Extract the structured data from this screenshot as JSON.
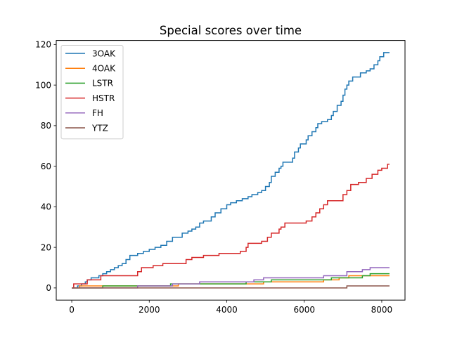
{
  "chart_data": {
    "type": "line",
    "title": "Special scores over time",
    "xlabel": "",
    "ylabel": "",
    "xlim": [
      -400,
      8600
    ],
    "ylim": [
      -6,
      122
    ],
    "xticks": [
      0,
      2000,
      4000,
      6000,
      8000
    ],
    "yticks": [
      0,
      20,
      40,
      60,
      80,
      100,
      120
    ],
    "xtick_labels": [
      "0",
      "2000",
      "4000",
      "6000",
      "8000"
    ],
    "ytick_labels": [
      "0",
      "20",
      "40",
      "60",
      "80",
      "100",
      "120"
    ],
    "grid": false,
    "legend_position": "upper left",
    "step": true,
    "series": [
      {
        "name": "3OAK",
        "color": "#1f77b4",
        "points": [
          [
            0,
            0
          ],
          [
            150,
            1
          ],
          [
            250,
            2
          ],
          [
            350,
            3
          ],
          [
            400,
            4
          ],
          [
            500,
            5
          ],
          [
            700,
            6
          ],
          [
            800,
            7
          ],
          [
            900,
            8
          ],
          [
            1000,
            9
          ],
          [
            1100,
            10
          ],
          [
            1200,
            11
          ],
          [
            1300,
            12
          ],
          [
            1400,
            14
          ],
          [
            1500,
            16
          ],
          [
            1700,
            17
          ],
          [
            1850,
            18
          ],
          [
            2000,
            19
          ],
          [
            2150,
            20
          ],
          [
            2300,
            21
          ],
          [
            2450,
            23
          ],
          [
            2600,
            25
          ],
          [
            2850,
            27
          ],
          [
            3000,
            28
          ],
          [
            3100,
            29
          ],
          [
            3200,
            30
          ],
          [
            3300,
            32
          ],
          [
            3400,
            33
          ],
          [
            3600,
            35
          ],
          [
            3700,
            37
          ],
          [
            3850,
            39
          ],
          [
            4000,
            41
          ],
          [
            4100,
            42
          ],
          [
            4250,
            43
          ],
          [
            4400,
            44
          ],
          [
            4550,
            45
          ],
          [
            4650,
            46
          ],
          [
            4800,
            47
          ],
          [
            4900,
            48
          ],
          [
            5000,
            50
          ],
          [
            5100,
            52
          ],
          [
            5150,
            55
          ],
          [
            5250,
            57
          ],
          [
            5350,
            59
          ],
          [
            5400,
            60
          ],
          [
            5450,
            62
          ],
          [
            5700,
            64
          ],
          [
            5750,
            67
          ],
          [
            5850,
            69
          ],
          [
            5900,
            71
          ],
          [
            6050,
            73
          ],
          [
            6100,
            75
          ],
          [
            6200,
            77
          ],
          [
            6300,
            79
          ],
          [
            6350,
            81
          ],
          [
            6450,
            82
          ],
          [
            6600,
            83
          ],
          [
            6700,
            85
          ],
          [
            6750,
            87
          ],
          [
            6850,
            90
          ],
          [
            6950,
            92
          ],
          [
            7000,
            95
          ],
          [
            7050,
            98
          ],
          [
            7100,
            100
          ],
          [
            7150,
            102
          ],
          [
            7250,
            104
          ],
          [
            7450,
            106
          ],
          [
            7600,
            107
          ],
          [
            7700,
            108
          ],
          [
            7800,
            110
          ],
          [
            7900,
            112
          ],
          [
            7950,
            114
          ],
          [
            8050,
            116
          ],
          [
            8200,
            116
          ]
        ]
      },
      {
        "name": "4OAK",
        "color": "#ff7f0e",
        "points": [
          [
            0,
            0
          ],
          [
            200,
            1
          ],
          [
            1400,
            1
          ],
          [
            2750,
            2
          ],
          [
            4950,
            3
          ],
          [
            6500,
            4
          ],
          [
            6900,
            5
          ],
          [
            7150,
            6
          ],
          [
            8200,
            6
          ]
        ]
      },
      {
        "name": "LSTR",
        "color": "#2ca02c",
        "points": [
          [
            0,
            0
          ],
          [
            800,
            1
          ],
          [
            2550,
            2
          ],
          [
            4500,
            3
          ],
          [
            5150,
            4
          ],
          [
            6700,
            5
          ],
          [
            7500,
            6
          ],
          [
            7700,
            7
          ],
          [
            8200,
            7
          ]
        ]
      },
      {
        "name": "HSTR",
        "color": "#d62728",
        "points": [
          [
            0,
            0
          ],
          [
            50,
            2
          ],
          [
            400,
            4
          ],
          [
            750,
            6
          ],
          [
            1700,
            8
          ],
          [
            1800,
            10
          ],
          [
            2100,
            11
          ],
          [
            2350,
            12
          ],
          [
            2950,
            14
          ],
          [
            3100,
            15
          ],
          [
            3400,
            16
          ],
          [
            3800,
            17
          ],
          [
            4350,
            18
          ],
          [
            4500,
            20
          ],
          [
            4550,
            22
          ],
          [
            4900,
            23
          ],
          [
            5050,
            25
          ],
          [
            5150,
            27
          ],
          [
            5350,
            29
          ],
          [
            5400,
            30
          ],
          [
            5500,
            32
          ],
          [
            6050,
            33
          ],
          [
            6200,
            35
          ],
          [
            6300,
            37
          ],
          [
            6400,
            39
          ],
          [
            6500,
            41
          ],
          [
            6600,
            43
          ],
          [
            7000,
            46
          ],
          [
            7100,
            48
          ],
          [
            7200,
            51
          ],
          [
            7400,
            52
          ],
          [
            7600,
            54
          ],
          [
            7750,
            56
          ],
          [
            7900,
            58
          ],
          [
            8000,
            59
          ],
          [
            8150,
            61
          ],
          [
            8200,
            61
          ]
        ]
      },
      {
        "name": "FH",
        "color": "#9467bd",
        "points": [
          [
            0,
            0
          ],
          [
            1700,
            1
          ],
          [
            2600,
            2
          ],
          [
            3300,
            3
          ],
          [
            4700,
            4
          ],
          [
            4950,
            5
          ],
          [
            6500,
            6
          ],
          [
            7100,
            8
          ],
          [
            7500,
            9
          ],
          [
            7700,
            10
          ],
          [
            8200,
            10
          ]
        ]
      },
      {
        "name": "YTZ",
        "color": "#8c564b",
        "points": [
          [
            0,
            0
          ],
          [
            7100,
            1
          ],
          [
            8200,
            1
          ]
        ]
      }
    ]
  }
}
